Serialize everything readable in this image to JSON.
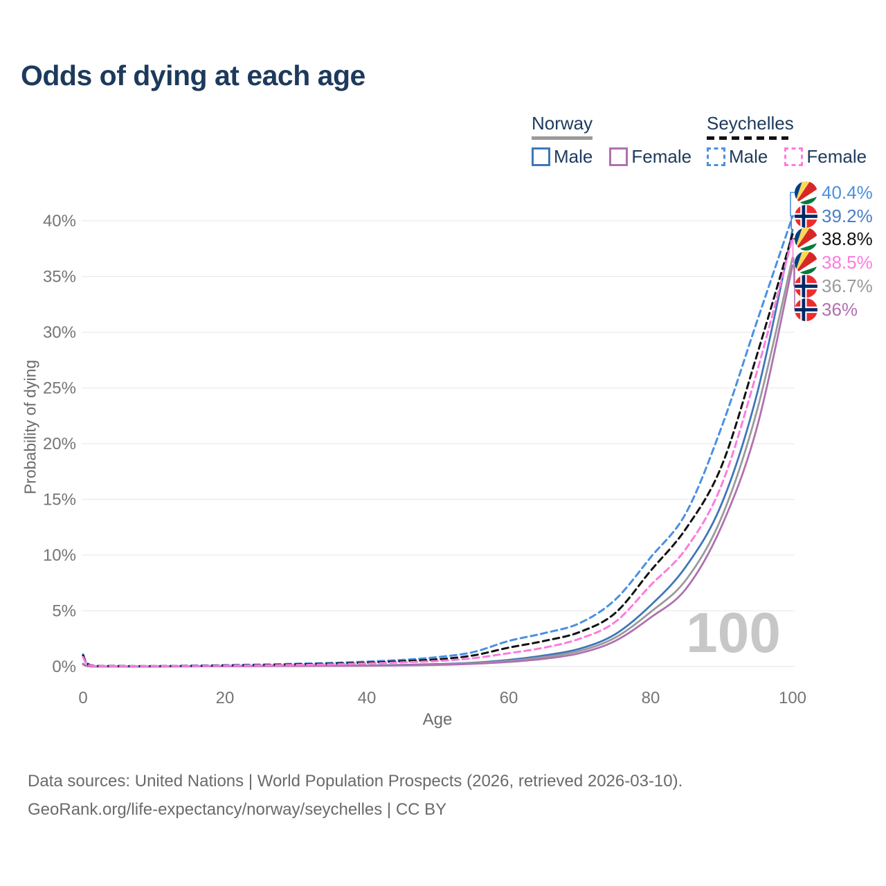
{
  "title": "Odds of dying at each age",
  "legend": {
    "groups": [
      {
        "name": "Norway",
        "line_style": "solid",
        "underline_color": "#9a9a9a",
        "items": [
          {
            "label": "Male",
            "color": "#3f76b8"
          },
          {
            "label": "Female",
            "color": "#b070b0"
          }
        ]
      },
      {
        "name": "Seychelles",
        "line_style": "dashed",
        "underline_color": "#111111",
        "items": [
          {
            "label": "Male",
            "color": "#4a90e2"
          },
          {
            "label": "Female",
            "color": "#ff7ade"
          }
        ]
      }
    ]
  },
  "axes": {
    "xlabel": "Age",
    "ylabel": "Probability of dying",
    "x_ticks": [
      {
        "v": 0,
        "label": "0"
      },
      {
        "v": 20,
        "label": "20"
      },
      {
        "v": 40,
        "label": "40"
      },
      {
        "v": 60,
        "label": "60"
      },
      {
        "v": 80,
        "label": "80"
      },
      {
        "v": 100,
        "label": "100"
      }
    ],
    "y_ticks": [
      {
        "v": 0,
        "label": "0%"
      },
      {
        "v": 5,
        "label": "5%"
      },
      {
        "v": 10,
        "label": "10%"
      },
      {
        "v": 15,
        "label": "15%"
      },
      {
        "v": 20,
        "label": "20%"
      },
      {
        "v": 25,
        "label": "25%"
      },
      {
        "v": 30,
        "label": "30%"
      },
      {
        "v": 35,
        "label": "35%"
      },
      {
        "v": 40,
        "label": "40%"
      }
    ]
  },
  "watermark": "100",
  "annotations": [
    {
      "value": "40.4%",
      "pct": 40.4,
      "flag": "seychelles",
      "color": "#4a90e2"
    },
    {
      "value": "39.2%",
      "pct": 39.2,
      "flag": "norway",
      "color": "#4a7ec4"
    },
    {
      "value": "38.8%",
      "pct": 38.8,
      "flag": "seychelles",
      "color": "#111111"
    },
    {
      "value": "38.5%",
      "pct": 38.5,
      "flag": "seychelles",
      "color": "#ff7ade"
    },
    {
      "value": "36.7%",
      "pct": 36.7,
      "flag": "norway",
      "color": "#9a9a9a"
    },
    {
      "value": "36%",
      "pct": 36.0,
      "flag": "norway",
      "color": "#b070b0"
    }
  ],
  "footer": {
    "line1": "Data sources: United Nations | World Population Prospects (2026, retrieved 2026-03-10).",
    "line2": "GeoRank.org/life-expectancy/norway/seychelles | CC BY"
  },
  "chart_data": {
    "type": "line",
    "title": "Odds of dying at each age",
    "xlabel": "Age",
    "ylabel": "Probability of dying",
    "xlim": [
      0,
      100
    ],
    "ylim_pct": [
      0,
      40
    ],
    "grid": "horizontal",
    "legend_position": "top-right",
    "series": [
      {
        "name": "Norway Male",
        "country": "Norway",
        "sex": "male",
        "color": "#3f76b8",
        "dash": false,
        "end_label": "39.2%",
        "points": [
          [
            0,
            0.25
          ],
          [
            1,
            0.02
          ],
          [
            5,
            0.01
          ],
          [
            10,
            0.01
          ],
          [
            15,
            0.03
          ],
          [
            20,
            0.05
          ],
          [
            25,
            0.06
          ],
          [
            30,
            0.07
          ],
          [
            35,
            0.08
          ],
          [
            40,
            0.1
          ],
          [
            45,
            0.15
          ],
          [
            50,
            0.22
          ],
          [
            55,
            0.35
          ],
          [
            60,
            0.6
          ],
          [
            65,
            1.0
          ],
          [
            70,
            1.6
          ],
          [
            75,
            2.9
          ],
          [
            80,
            5.5
          ],
          [
            85,
            9.0
          ],
          [
            90,
            14.6
          ],
          [
            95,
            24.5
          ],
          [
            100,
            39.2
          ]
        ]
      },
      {
        "name": "Norway Total",
        "country": "Norway",
        "sex": "total",
        "color": "#9a9a9a",
        "dash": false,
        "end_label": "36.7%",
        "points": [
          [
            0,
            0.22
          ],
          [
            1,
            0.02
          ],
          [
            5,
            0.01
          ],
          [
            10,
            0.01
          ],
          [
            15,
            0.02
          ],
          [
            20,
            0.04
          ],
          [
            25,
            0.05
          ],
          [
            30,
            0.06
          ],
          [
            35,
            0.07
          ],
          [
            40,
            0.09
          ],
          [
            45,
            0.13
          ],
          [
            50,
            0.18
          ],
          [
            55,
            0.3
          ],
          [
            60,
            0.5
          ],
          [
            65,
            0.85
          ],
          [
            70,
            1.4
          ],
          [
            75,
            2.6
          ],
          [
            80,
            4.9
          ],
          [
            85,
            7.8
          ],
          [
            90,
            13.4
          ],
          [
            95,
            23.0
          ],
          [
            100,
            36.7
          ]
        ]
      },
      {
        "name": "Norway Female",
        "country": "Norway",
        "sex": "female",
        "color": "#b070b0",
        "dash": false,
        "end_label": "36%",
        "points": [
          [
            0,
            0.2
          ],
          [
            1,
            0.02
          ],
          [
            5,
            0.01
          ],
          [
            10,
            0.01
          ],
          [
            15,
            0.02
          ],
          [
            20,
            0.03
          ],
          [
            25,
            0.04
          ],
          [
            30,
            0.05
          ],
          [
            35,
            0.06
          ],
          [
            40,
            0.07
          ],
          [
            45,
            0.1
          ],
          [
            50,
            0.15
          ],
          [
            55,
            0.25
          ],
          [
            60,
            0.42
          ],
          [
            65,
            0.7
          ],
          [
            70,
            1.2
          ],
          [
            75,
            2.3
          ],
          [
            80,
            4.4
          ],
          [
            85,
            7.0
          ],
          [
            90,
            12.6
          ],
          [
            95,
            21.5
          ],
          [
            100,
            36.0
          ]
        ]
      },
      {
        "name": "Seychelles Male",
        "country": "Seychelles",
        "sex": "male",
        "color": "#4a90e2",
        "dash": true,
        "end_label": "40.4%",
        "points": [
          [
            0,
            1.1
          ],
          [
            1,
            0.15
          ],
          [
            5,
            0.06
          ],
          [
            10,
            0.05
          ],
          [
            15,
            0.08
          ],
          [
            20,
            0.13
          ],
          [
            25,
            0.18
          ],
          [
            30,
            0.25
          ],
          [
            35,
            0.33
          ],
          [
            40,
            0.45
          ],
          [
            45,
            0.6
          ],
          [
            50,
            0.85
          ],
          [
            55,
            1.3
          ],
          [
            60,
            2.3
          ],
          [
            65,
            3.0
          ],
          [
            70,
            3.9
          ],
          [
            75,
            6.0
          ],
          [
            80,
            9.8
          ],
          [
            85,
            13.8
          ],
          [
            90,
            21.5
          ],
          [
            95,
            31.0
          ],
          [
            100,
            40.4
          ]
        ]
      },
      {
        "name": "Seychelles Total",
        "country": "Seychelles",
        "sex": "total",
        "color": "#111111",
        "dash": true,
        "end_label": "38.8%",
        "points": [
          [
            0,
            1.0
          ],
          [
            1,
            0.12
          ],
          [
            5,
            0.05
          ],
          [
            10,
            0.04
          ],
          [
            15,
            0.06
          ],
          [
            20,
            0.1
          ],
          [
            25,
            0.14
          ],
          [
            30,
            0.2
          ],
          [
            35,
            0.26
          ],
          [
            40,
            0.35
          ],
          [
            45,
            0.48
          ],
          [
            50,
            0.65
          ],
          [
            55,
            1.0
          ],
          [
            60,
            1.7
          ],
          [
            65,
            2.3
          ],
          [
            70,
            3.1
          ],
          [
            75,
            4.8
          ],
          [
            80,
            8.6
          ],
          [
            85,
            12.4
          ],
          [
            90,
            18.0
          ],
          [
            95,
            28.0
          ],
          [
            100,
            38.8
          ]
        ]
      },
      {
        "name": "Seychelles Female",
        "country": "Seychelles",
        "sex": "female",
        "color": "#ff7ade",
        "dash": true,
        "end_label": "38.5%",
        "points": [
          [
            0,
            0.85
          ],
          [
            1,
            0.1
          ],
          [
            5,
            0.04
          ],
          [
            10,
            0.04
          ],
          [
            15,
            0.05
          ],
          [
            20,
            0.08
          ],
          [
            25,
            0.11
          ],
          [
            30,
            0.15
          ],
          [
            35,
            0.2
          ],
          [
            40,
            0.28
          ],
          [
            45,
            0.38
          ],
          [
            50,
            0.5
          ],
          [
            55,
            0.75
          ],
          [
            60,
            1.2
          ],
          [
            65,
            1.7
          ],
          [
            70,
            2.5
          ],
          [
            75,
            4.0
          ],
          [
            80,
            7.3
          ],
          [
            85,
            10.6
          ],
          [
            90,
            16.3
          ],
          [
            95,
            26.5
          ],
          [
            100,
            38.5
          ]
        ]
      }
    ]
  }
}
